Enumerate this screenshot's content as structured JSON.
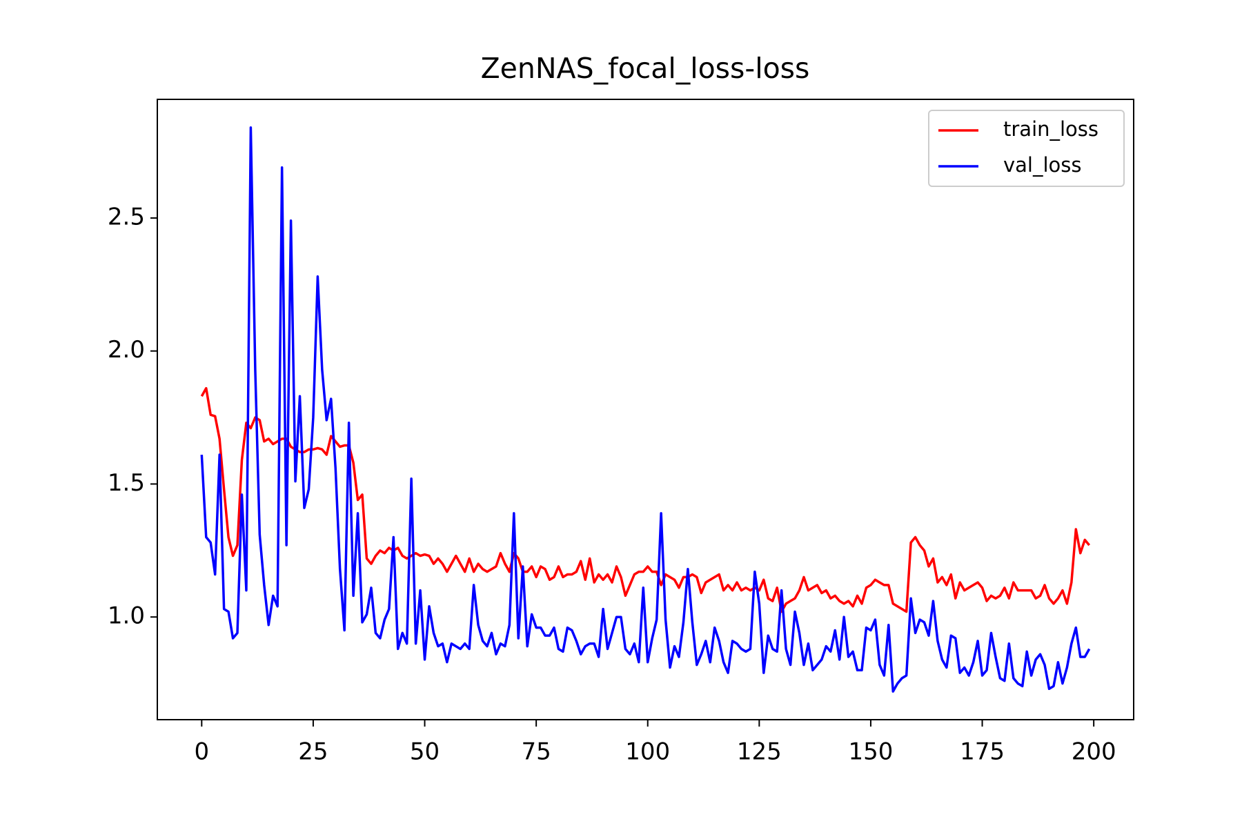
{
  "chart_data": {
    "type": "line",
    "title": "ZenNAS_focal_loss-loss",
    "x": [
      0,
      1,
      2,
      3,
      4,
      5,
      6,
      7,
      8,
      9,
      10,
      11,
      12,
      13,
      14,
      15,
      16,
      17,
      18,
      19,
      20,
      21,
      22,
      23,
      24,
      25,
      26,
      27,
      28,
      29,
      30,
      31,
      32,
      33,
      34,
      35,
      36,
      37,
      38,
      39,
      40,
      41,
      42,
      43,
      44,
      45,
      46,
      47,
      48,
      49,
      50,
      51,
      52,
      53,
      54,
      55,
      56,
      57,
      58,
      59,
      60,
      61,
      62,
      63,
      64,
      65,
      66,
      67,
      68,
      69,
      70,
      71,
      72,
      73,
      74,
      75,
      76,
      77,
      78,
      79,
      80,
      81,
      82,
      83,
      84,
      85,
      86,
      87,
      88,
      89,
      90,
      91,
      92,
      93,
      94,
      95,
      96,
      97,
      98,
      99,
      100,
      101,
      102,
      103,
      104,
      105,
      106,
      107,
      108,
      109,
      110,
      111,
      112,
      113,
      114,
      115,
      116,
      117,
      118,
      119,
      120,
      121,
      122,
      123,
      124,
      125,
      126,
      127,
      128,
      129,
      130,
      131,
      132,
      133,
      134,
      135,
      136,
      137,
      138,
      139,
      140,
      141,
      142,
      143,
      144,
      145,
      146,
      147,
      148,
      149,
      150,
      151,
      152,
      153,
      154,
      155,
      156,
      157,
      158,
      159,
      160,
      161,
      162,
      163,
      164,
      165,
      166,
      167,
      168,
      169,
      170,
      171,
      172,
      173,
      174,
      175,
      176,
      177,
      178,
      179,
      180,
      181,
      182,
      183,
      184,
      185,
      186,
      187,
      188,
      189,
      190,
      191,
      192,
      193,
      194,
      195,
      196,
      197,
      198,
      199
    ],
    "series": [
      {
        "name": "train_loss",
        "color": "#ff0000",
        "values": [
          1.83,
          1.86,
          1.76,
          1.755,
          1.67,
          1.48,
          1.3,
          1.23,
          1.27,
          1.59,
          1.73,
          1.71,
          1.75,
          1.74,
          1.66,
          1.67,
          1.65,
          1.66,
          1.67,
          1.67,
          1.64,
          1.63,
          1.62,
          1.62,
          1.63,
          1.63,
          1.635,
          1.63,
          1.61,
          1.68,
          1.66,
          1.64,
          1.645,
          1.645,
          1.58,
          1.44,
          1.46,
          1.22,
          1.2,
          1.23,
          1.25,
          1.24,
          1.26,
          1.25,
          1.26,
          1.23,
          1.22,
          1.23,
          1.24,
          1.23,
          1.235,
          1.23,
          1.2,
          1.22,
          1.2,
          1.17,
          1.2,
          1.23,
          1.2,
          1.17,
          1.22,
          1.17,
          1.2,
          1.18,
          1.17,
          1.18,
          1.19,
          1.24,
          1.2,
          1.17,
          1.24,
          1.22,
          1.17,
          1.17,
          1.19,
          1.15,
          1.19,
          1.18,
          1.14,
          1.15,
          1.19,
          1.15,
          1.16,
          1.16,
          1.17,
          1.21,
          1.14,
          1.22,
          1.13,
          1.16,
          1.14,
          1.16,
          1.13,
          1.19,
          1.15,
          1.08,
          1.12,
          1.16,
          1.17,
          1.17,
          1.19,
          1.17,
          1.17,
          1.12,
          1.16,
          1.15,
          1.14,
          1.11,
          1.15,
          1.15,
          1.16,
          1.15,
          1.09,
          1.13,
          1.14,
          1.15,
          1.16,
          1.1,
          1.12,
          1.1,
          1.13,
          1.1,
          1.11,
          1.1,
          1.11,
          1.1,
          1.14,
          1.07,
          1.06,
          1.11,
          1.02,
          1.05,
          1.06,
          1.07,
          1.1,
          1.15,
          1.1,
          1.11,
          1.12,
          1.09,
          1.1,
          1.07,
          1.08,
          1.06,
          1.05,
          1.06,
          1.04,
          1.08,
          1.05,
          1.11,
          1.12,
          1.14,
          1.13,
          1.12,
          1.12,
          1.05,
          1.04,
          1.03,
          1.02,
          1.28,
          1.3,
          1.27,
          1.25,
          1.19,
          1.22,
          1.13,
          1.15,
          1.12,
          1.16,
          1.07,
          1.13,
          1.1,
          1.11,
          1.12,
          1.13,
          1.11,
          1.06,
          1.08,
          1.07,
          1.08,
          1.11,
          1.07,
          1.13,
          1.1,
          1.1,
          1.1,
          1.1,
          1.07,
          1.08,
          1.12,
          1.07,
          1.05,
          1.07,
          1.1,
          1.05,
          1.13,
          1.33,
          1.24,
          1.29,
          1.27
        ]
      },
      {
        "name": "val_loss",
        "color": "#0000ff",
        "values": [
          1.61,
          1.3,
          1.28,
          1.16,
          1.61,
          1.03,
          1.02,
          0.92,
          0.94,
          1.46,
          1.1,
          2.84,
          1.93,
          1.31,
          1.12,
          0.97,
          1.08,
          1.04,
          2.69,
          1.27,
          2.49,
          1.51,
          1.83,
          1.41,
          1.48,
          1.75,
          2.28,
          1.93,
          1.74,
          1.82,
          1.56,
          1.18,
          0.95,
          1.73,
          1.08,
          1.39,
          0.98,
          1.01,
          1.11,
          0.94,
          0.92,
          0.99,
          1.03,
          1.3,
          0.88,
          0.94,
          0.9,
          1.52,
          0.9,
          1.1,
          0.84,
          1.04,
          0.94,
          0.89,
          0.9,
          0.83,
          0.9,
          0.89,
          0.88,
          0.9,
          0.88,
          1.12,
          0.97,
          0.91,
          0.89,
          0.94,
          0.86,
          0.9,
          0.89,
          0.97,
          1.39,
          0.92,
          1.19,
          0.89,
          1.01,
          0.96,
          0.96,
          0.93,
          0.93,
          0.96,
          0.88,
          0.87,
          0.96,
          0.95,
          0.91,
          0.86,
          0.89,
          0.9,
          0.9,
          0.85,
          1.03,
          0.88,
          0.94,
          1.0,
          1.0,
          0.88,
          0.86,
          0.9,
          0.83,
          1.11,
          0.83,
          0.92,
          0.99,
          1.39,
          0.99,
          0.81,
          0.89,
          0.85,
          0.98,
          1.18,
          0.98,
          0.82,
          0.86,
          0.91,
          0.83,
          0.96,
          0.91,
          0.83,
          0.79,
          0.91,
          0.9,
          0.88,
          0.87,
          0.88,
          1.17,
          1.05,
          0.79,
          0.93,
          0.88,
          0.87,
          1.1,
          0.88,
          0.82,
          1.02,
          0.94,
          0.82,
          0.9,
          0.8,
          0.82,
          0.84,
          0.89,
          0.87,
          0.95,
          0.84,
          1.0,
          0.85,
          0.87,
          0.8,
          0.8,
          0.96,
          0.95,
          0.99,
          0.82,
          0.78,
          0.97,
          0.72,
          0.75,
          0.77,
          0.78,
          1.07,
          0.94,
          0.99,
          0.98,
          0.93,
          1.06,
          0.91,
          0.84,
          0.81,
          0.93,
          0.92,
          0.79,
          0.81,
          0.78,
          0.83,
          0.91,
          0.78,
          0.8,
          0.94,
          0.85,
          0.77,
          0.76,
          0.9,
          0.77,
          0.75,
          0.74,
          0.87,
          0.78,
          0.84,
          0.86,
          0.82,
          0.73,
          0.74,
          0.83,
          0.75,
          0.81,
          0.9,
          0.96,
          0.85,
          0.85,
          0.88
        ]
      }
    ],
    "xlim": [
      -9.95,
      208.95
    ],
    "xticks": [
      0,
      25,
      50,
      75,
      100,
      125,
      150,
      175,
      200
    ],
    "ylim": [
      0.614,
      2.946
    ],
    "yticks": [
      {
        "value": 1,
        "label": "1.0"
      },
      {
        "value": 1.5,
        "label": "1.5"
      },
      {
        "value": 2,
        "label": "2.0"
      },
      {
        "value": 2.5,
        "label": "2.5"
      }
    ],
    "grid": false,
    "legend": "upper right"
  }
}
